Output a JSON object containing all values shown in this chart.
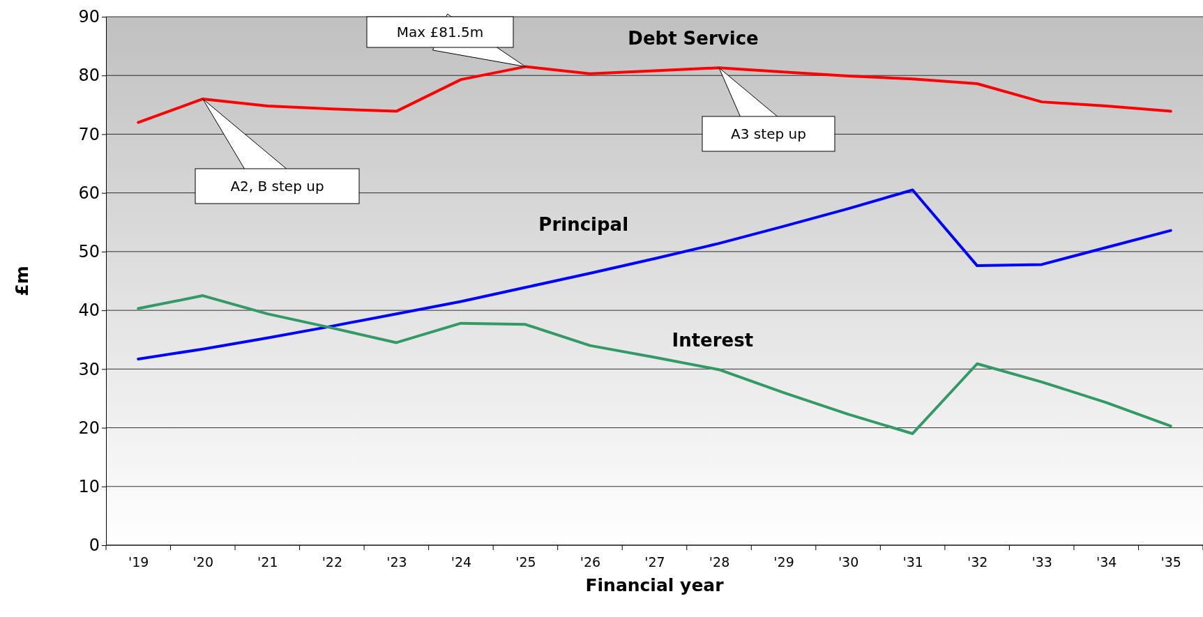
{
  "chart_data": {
    "type": "line",
    "xlabel": "Financial year",
    "ylabel": "£m",
    "categories": [
      "'19",
      "'20",
      "'21",
      "'22",
      "'23",
      "'24",
      "'25",
      "'26",
      "'27",
      "'28",
      "'29",
      "'30",
      "'31",
      "'32",
      "'33",
      "'34",
      "'35"
    ],
    "series": [
      {
        "name": "Debt Service",
        "color": "#ff0000",
        "values": [
          72,
          76,
          74.8,
          74.3,
          73.9,
          79.3,
          81.5,
          80.3,
          80.8,
          81.3,
          80.6,
          79.9,
          79.4,
          78.6,
          75.5,
          74.8,
          73.9
        ]
      },
      {
        "name": "Principal",
        "color": "#0000ff",
        "values": [
          31.7,
          33.4,
          35.3,
          37.3,
          39.4,
          41.5,
          43.9,
          46.3,
          48.8,
          51.4,
          54.3,
          57.3,
          60.5,
          47.6,
          47.8,
          50.7,
          53.6
        ]
      },
      {
        "name": "Interest",
        "color": "#339966",
        "values": [
          40.3,
          42.5,
          39.4,
          37.0,
          34.5,
          37.8,
          37.6,
          34.0,
          32.0,
          29.9,
          26.0,
          22.3,
          19.0,
          30.9,
          27.8,
          24.3,
          20.3
        ]
      }
    ],
    "ylim": [
      0,
      90
    ],
    "yticks": [
      0,
      10,
      20,
      30,
      40,
      50,
      60,
      70,
      80,
      90
    ],
    "grid": "y",
    "marker": "none",
    "line_style": "solid",
    "annotations": [
      "Max £81.5m",
      "A2, B step up",
      "A3 step up"
    ]
  }
}
